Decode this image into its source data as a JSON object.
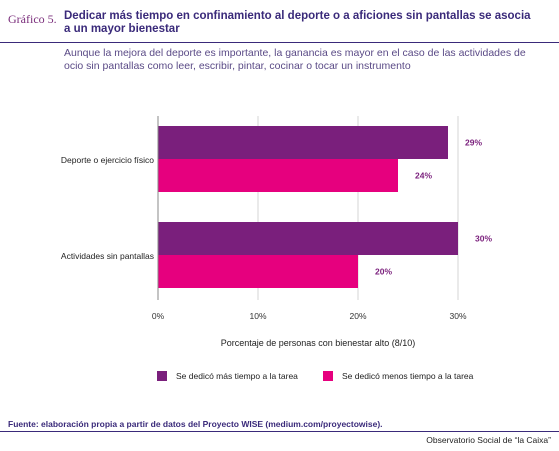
{
  "header": {
    "figure_label": "Gráfico 5.",
    "title": "Dedicar más tiempo en confinamiento al deporte o a aficiones sin pantallas se asocia a un mayor bienestar",
    "subtitle": "Aunque la mejora del deporte es importante, la ganancia es mayor en el caso de las actividades de ocio sin pantallas como leer, escribir, pintar, cocinar o tocar un instrumento"
  },
  "chart_data": {
    "type": "bar",
    "orientation": "horizontal",
    "categories": [
      "Deporte o ejercicio físico",
      "Actividades sin pantallas"
    ],
    "series": [
      {
        "name": "Se dedicó más tiempo a la tarea",
        "values": [
          29,
          30
        ],
        "labels": [
          "29%",
          "30%"
        ],
        "color": "#7a1f7c"
      },
      {
        "name": "Se dedicó menos tiempo a la tarea",
        "values": [
          24,
          20
        ],
        "labels": [
          "24%",
          "20%"
        ],
        "color": "#e6007e"
      }
    ],
    "xlabel": "Porcentaje de personas con bienestar alto (8/10)",
    "xlim": [
      0,
      30
    ],
    "xticks": [
      0,
      10,
      20,
      30
    ],
    "xtick_labels": [
      "0%",
      "10%",
      "20%",
      "30%"
    ],
    "grid": true,
    "legend_position": "bottom",
    "value_label_color": "#7a1f7c"
  },
  "footer": {
    "source": "Fuente: elaboración propia a partir de datos del Proyecto WISE (medium.com/proyectowise).",
    "publisher": "Observatorio Social de “la Caixa”"
  }
}
